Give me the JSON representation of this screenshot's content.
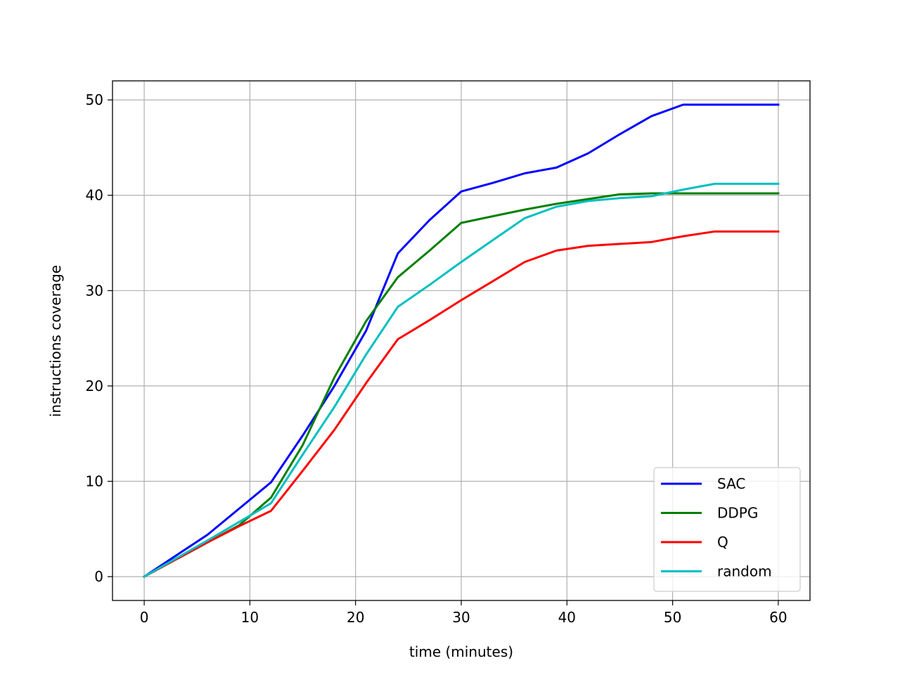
{
  "chart_data": {
    "type": "line",
    "title": "",
    "xlabel": "time (minutes)",
    "ylabel": "instructions coverage",
    "xlim": [
      -3,
      63
    ],
    "ylim": [
      -2.5,
      52
    ],
    "xticks": [
      0,
      10,
      20,
      30,
      40,
      50,
      60
    ],
    "yticks": [
      0,
      10,
      20,
      30,
      40,
      50
    ],
    "grid": true,
    "legend_position": "bottom-right",
    "series": [
      {
        "name": "SAC",
        "color": "#0000ff",
        "x": [
          0,
          6,
          12,
          15,
          18,
          21,
          24,
          27,
          30,
          33,
          36,
          39,
          42,
          45,
          48,
          51,
          54,
          57,
          60
        ],
        "values": [
          0,
          4.4,
          9.9,
          14.8,
          20.0,
          25.8,
          33.9,
          37.4,
          40.4,
          41.3,
          42.3,
          42.9,
          44.4,
          46.4,
          48.3,
          49.5,
          49.5,
          49.5,
          49.5
        ]
      },
      {
        "name": "DDPG",
        "color": "#008000",
        "x": [
          0,
          6,
          9,
          12,
          15,
          18,
          21,
          24,
          27,
          30,
          33,
          36,
          39,
          42,
          45,
          48,
          51,
          54,
          57,
          60
        ],
        "values": [
          0,
          3.6,
          5.4,
          8.3,
          13.8,
          20.9,
          26.8,
          31.4,
          34.2,
          37.1,
          37.8,
          38.5,
          39.1,
          39.6,
          40.1,
          40.2,
          40.2,
          40.2,
          40.2,
          40.2
        ]
      },
      {
        "name": "Q",
        "color": "#ff0000",
        "x": [
          0,
          6,
          9,
          12,
          15,
          18,
          21,
          24,
          27,
          30,
          33,
          36,
          39,
          42,
          45,
          48,
          51,
          54,
          57,
          60
        ],
        "values": [
          0,
          3.6,
          5.3,
          6.9,
          11.1,
          15.4,
          20.3,
          24.9,
          26.9,
          29.0,
          31.0,
          33.0,
          34.2,
          34.7,
          34.9,
          35.1,
          35.7,
          36.2,
          36.2,
          36.2
        ]
      },
      {
        "name": "random",
        "color": "#00bfbf",
        "x": [
          0,
          6,
          12,
          15,
          18,
          21,
          24,
          27,
          30,
          33,
          36,
          39,
          42,
          45,
          48,
          51,
          54,
          57,
          60
        ],
        "values": [
          0,
          3.8,
          7.7,
          12.8,
          17.8,
          23.3,
          28.3,
          30.6,
          33.0,
          35.3,
          37.6,
          38.8,
          39.4,
          39.7,
          39.9,
          40.6,
          41.2,
          41.2,
          41.2
        ]
      }
    ]
  }
}
